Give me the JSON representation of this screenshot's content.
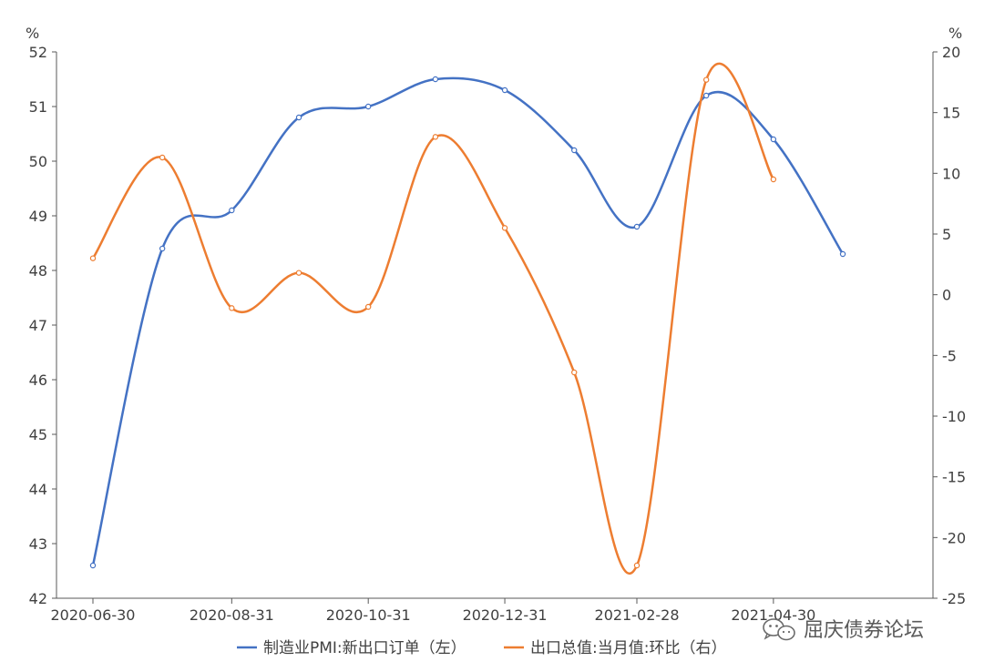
{
  "chart_data": {
    "type": "line",
    "x": [
      "2020-06-30",
      "2020-07-31",
      "2020-08-31",
      "2020-09-30",
      "2020-10-31",
      "2020-11-30",
      "2020-12-31",
      "2021-01-31",
      "2021-02-28",
      "2021-03-31",
      "2021-04-30",
      "2021-05-31"
    ],
    "xticks": [
      "2020-06-30",
      "2020-08-31",
      "2020-10-31",
      "2020-12-31",
      "2021-02-28",
      "2021-04-30"
    ],
    "left_axis": {
      "unit": "%",
      "ylim": [
        42,
        52
      ],
      "ticks": [
        42,
        43,
        44,
        45,
        46,
        47,
        48,
        49,
        50,
        51,
        52
      ]
    },
    "right_axis": {
      "unit": "%",
      "ylim": [
        -25,
        20
      ],
      "ticks": [
        -25,
        -20,
        -15,
        -10,
        -5,
        0,
        5,
        10,
        15,
        20
      ]
    },
    "series": [
      {
        "name": "制造业PMI:新出口订单（左）",
        "axis": "left",
        "color": "#4472C4",
        "values": [
          42.6,
          48.4,
          49.1,
          50.8,
          51.0,
          51.5,
          51.3,
          50.2,
          48.8,
          51.2,
          50.4,
          48.3
        ]
      },
      {
        "name": "出口总值:当月值:环比（右）",
        "axis": "right",
        "color": "#ED7D31",
        "values": [
          3.0,
          11.3,
          -1.1,
          1.8,
          -1.0,
          13.0,
          5.5,
          -6.4,
          -22.3,
          17.7,
          9.5,
          null
        ]
      }
    ],
    "grid": false,
    "legend_position": "bottom"
  },
  "watermark": {
    "text": "屈庆债券论坛",
    "icon": "wechat-icon"
  }
}
